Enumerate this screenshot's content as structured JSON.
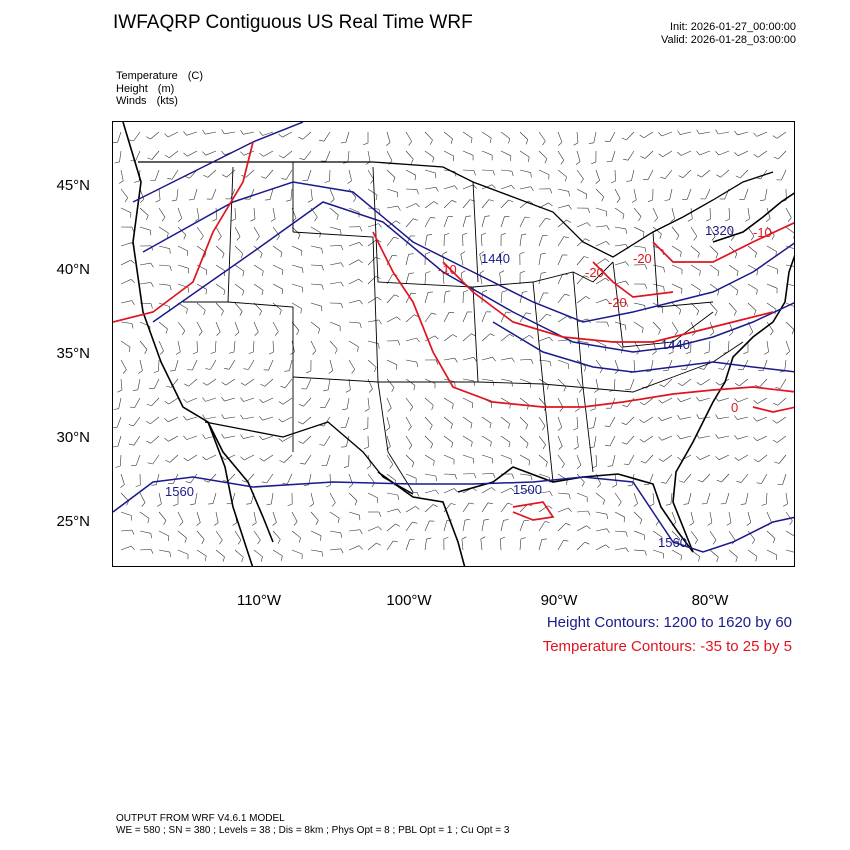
{
  "title": "IWFAQRP Contiguous US Real Time WRF",
  "init": "Init: 2026-01-27_00:00:00",
  "valid": "Valid: 2026-01-28_03:00:00",
  "fields": [
    {
      "name": "Temperature",
      "unit": "(C)"
    },
    {
      "name": "Height",
      "unit": "(m)"
    },
    {
      "name": "Winds",
      "unit": "(kts)"
    }
  ],
  "lat_labels": [
    "45°N",
    "40°N",
    "35°N",
    "30°N",
    "25°N"
  ],
  "lon_labels": [
    "110°W",
    "100°W",
    "90°W",
    "80°W"
  ],
  "height_labels": [
    "1440",
    "1320",
    "1440",
    "1500",
    "1560",
    "1560"
  ],
  "temp_labels": [
    "-10",
    "-20",
    "-20",
    "-20",
    "-10",
    "0"
  ],
  "legend": {
    "height": "Height Contours: 1200 to 1620 by 60",
    "temperature": "Temperature Contours: -35 to 25 by 5"
  },
  "colors": {
    "height_contour": "#1a1a8c",
    "temperature_contour": "#e0141e",
    "border": "#000000"
  },
  "footer": {
    "line1": "OUTPUT FROM WRF V4.6.1 MODEL",
    "line2": "WE = 580 ; SN = 380 ; Levels = 38 ; Dis = 8km ; Phys Opt = 8 ; PBL Opt = 1 ; Cu Opt = 3"
  }
}
